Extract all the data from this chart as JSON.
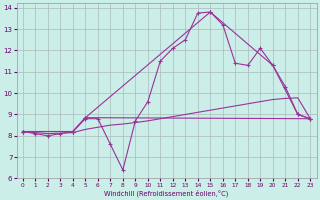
{
  "xlabel": "Windchill (Refroidissement éolien,°C)",
  "xlim": [
    -0.5,
    23.5
  ],
  "ylim": [
    6,
    14.2
  ],
  "xticks": [
    0,
    1,
    2,
    3,
    4,
    5,
    6,
    7,
    8,
    9,
    10,
    11,
    12,
    13,
    14,
    15,
    16,
    17,
    18,
    19,
    20,
    21,
    22,
    23
  ],
  "yticks": [
    6,
    7,
    8,
    9,
    10,
    11,
    12,
    13,
    14
  ],
  "bg_color": "#cceee8",
  "grid_color": "#aabbbb",
  "line_color": "#993399",
  "line1_x": [
    0,
    1,
    2,
    3,
    4,
    5,
    6,
    7,
    8,
    9,
    10,
    11,
    12,
    13,
    14,
    15,
    16,
    17,
    18,
    19,
    20,
    21,
    22,
    23
  ],
  "line1_y": [
    8.2,
    8.1,
    8.0,
    8.1,
    8.2,
    8.8,
    8.8,
    7.6,
    6.4,
    8.7,
    9.6,
    11.5,
    12.1,
    12.5,
    13.75,
    13.8,
    13.2,
    11.4,
    11.3,
    12.1,
    11.3,
    10.3,
    9.0,
    8.8
  ],
  "line2_x": [
    0,
    1,
    2,
    3,
    4,
    5,
    6,
    7,
    8,
    9,
    10,
    11,
    12,
    13,
    14,
    15,
    16,
    17,
    18,
    19,
    20,
    21,
    22,
    23
  ],
  "line2_y": [
    8.2,
    8.15,
    8.1,
    8.12,
    8.15,
    8.3,
    8.4,
    8.5,
    8.55,
    8.62,
    8.7,
    8.8,
    8.9,
    9.0,
    9.1,
    9.2,
    9.3,
    9.4,
    9.5,
    9.6,
    9.7,
    9.75,
    9.78,
    8.8
  ],
  "line3_x": [
    0,
    4,
    5,
    15,
    20,
    22,
    23
  ],
  "line3_y": [
    8.2,
    8.2,
    8.85,
    13.8,
    11.3,
    9.0,
    8.8
  ],
  "line4_x": [
    0,
    4,
    5,
    23
  ],
  "line4_y": [
    8.2,
    8.2,
    8.85,
    8.8
  ]
}
